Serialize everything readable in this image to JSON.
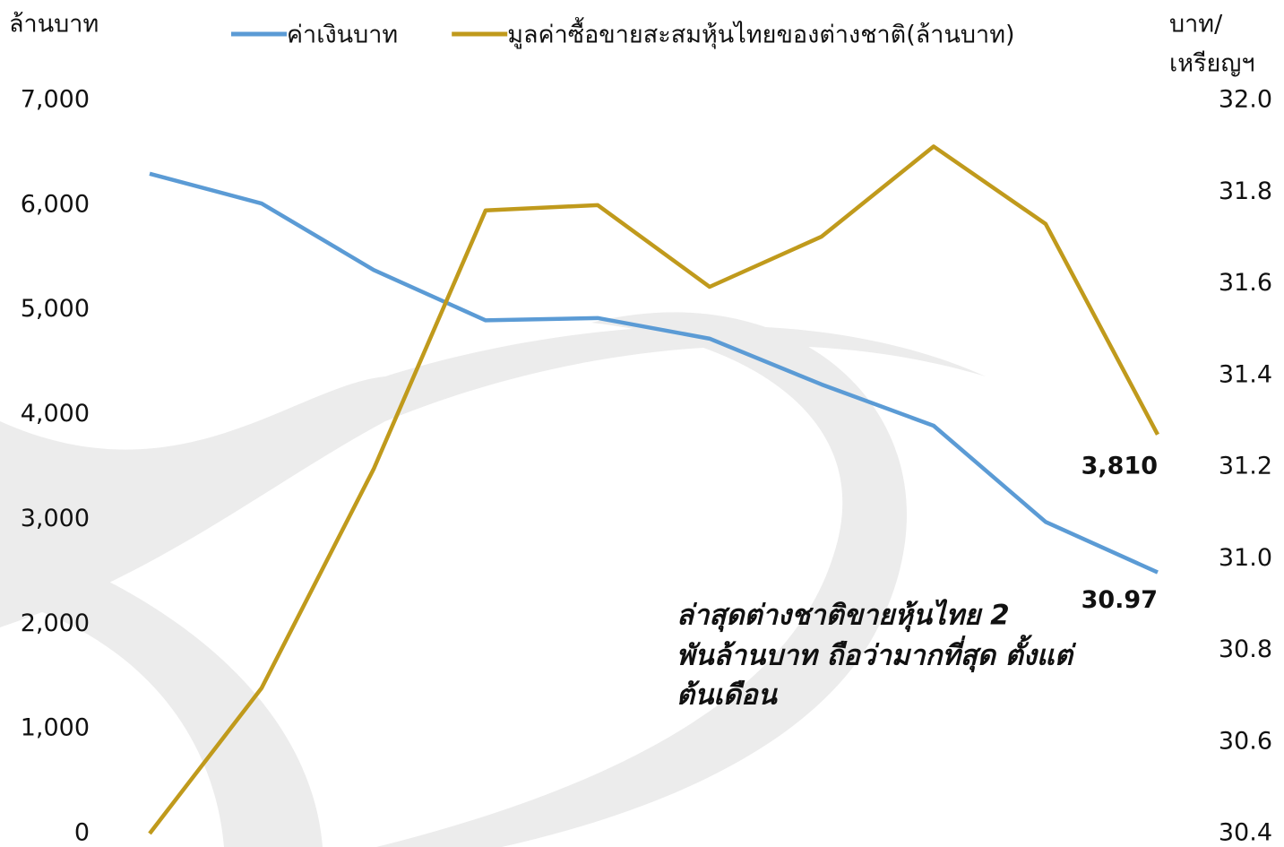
{
  "chart_data": {
    "type": "line",
    "y_label": "ล้านบาท",
    "y2_label": [
      "บาท/",
      "เหรียญฯ"
    ],
    "annotation": [
      "ล่าสุดต่างชาติขายหุ้นไทย 2",
      "พันล้านบาท ถือว่ามากที่สุด ตั้งแต่",
      "ต้นเดือน"
    ],
    "annotation_color": "#c09a1c",
    "categories": [
      null,
      null,
      null,
      null,
      null,
      null,
      null,
      null,
      null,
      null
    ],
    "series": [
      {
        "name": "ค่าเงินบาท",
        "color": "#5b9bd5",
        "axis": "y2",
        "values": [
          31.84,
          31.775,
          31.63,
          31.52,
          31.525,
          31.48,
          31.38,
          31.29,
          31.08,
          30.97
        ],
        "value_labels": [
          null,
          null,
          null,
          null,
          null,
          null,
          null,
          null,
          null,
          "30.97"
        ],
        "label_color": "#1f3864"
      },
      {
        "name": "มูลค่าซื้อขายสะสมหุ้นไทยของต่างชาติ(ล้านบาท)",
        "color": "#c09a1c",
        "values": [
          0,
          1390,
          3480,
          5950,
          6000,
          5220,
          5700,
          6560,
          5820,
          3810
        ],
        "value_labels": [
          null,
          null,
          null,
          null,
          null,
          null,
          null,
          null,
          null,
          "3,810"
        ],
        "label_color": "#c09a1c"
      }
    ],
    "ylim": [
      0,
      7000
    ],
    "yticks": [
      0,
      {
        "value": 1000,
        "label": "1,000"
      },
      {
        "value": 2000,
        "label": "2,000"
      },
      {
        "value": 3000,
        "label": "3,000"
      },
      {
        "value": 4000,
        "label": "4,000"
      },
      {
        "value": 5000,
        "label": "5,000"
      },
      {
        "value": 6000,
        "label": "6,000"
      },
      {
        "value": 7000,
        "label": "7,000"
      }
    ],
    "y2lim": [
      30.4,
      32.0
    ],
    "y2ticks": [
      30.4,
      30.6,
      30.8,
      {
        "value": 31.0,
        "label": "31.0"
      },
      31.2,
      31.4,
      31.6,
      31.8,
      {
        "value": 32.0,
        "label": "32.0"
      }
    ],
    "grid": false
  }
}
